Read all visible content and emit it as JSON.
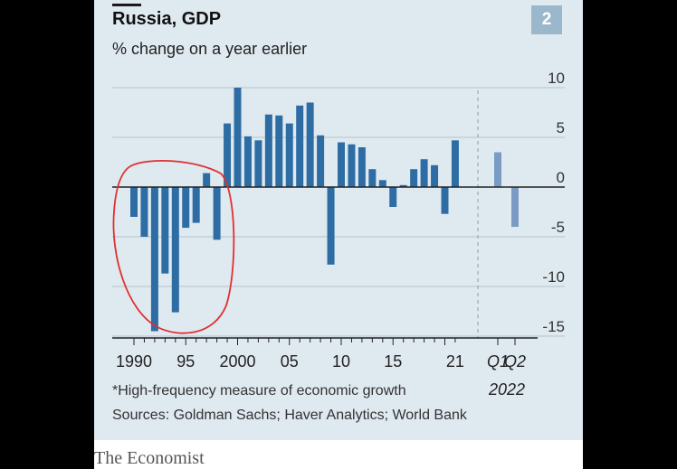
{
  "header": {
    "title": "Russia, GDP",
    "subtitle": "% change on a year earlier",
    "badge": "2"
  },
  "footer": {
    "footnote": "*High-frequency measure of economic growth",
    "sources": "Sources: Goldman Sachs; Haver Analytics; World Bank",
    "brand": "The Economist"
  },
  "colors": {
    "bar": "#2e6da4",
    "bar_estimate": "#7a9cc4",
    "annotation_circle": "#e03030",
    "background": "#dfe9f0"
  },
  "chart_data": {
    "type": "bar",
    "title": "Russia, GDP",
    "subtitle": "% change on a year earlier",
    "ylim": [
      -15,
      10
    ],
    "yticks": [
      10,
      5,
      0,
      -5,
      -10,
      -15
    ],
    "ytick_labels": [
      "10",
      "5",
      "0",
      "-5",
      "-10",
      "-15"
    ],
    "grid": true,
    "x": [
      1990,
      1991,
      1992,
      1993,
      1994,
      1995,
      1996,
      1997,
      1998,
      1999,
      2000,
      2001,
      2002,
      2003,
      2004,
      2005,
      2006,
      2007,
      2008,
      2009,
      2010,
      2011,
      2012,
      2013,
      2014,
      2015,
      2016,
      2017,
      2018,
      2019,
      2020,
      2021
    ],
    "values": [
      -3.0,
      -5.0,
      -14.5,
      -8.7,
      -12.6,
      -4.1,
      -3.6,
      1.4,
      -5.3,
      6.4,
      10.0,
      5.1,
      4.7,
      7.3,
      7.2,
      6.4,
      8.2,
      8.5,
      5.2,
      -7.8,
      4.5,
      4.3,
      4.0,
      1.8,
      0.7,
      -2.0,
      0.2,
      1.8,
      2.8,
      2.2,
      -2.7,
      4.7
    ],
    "xtick_labels": [
      {
        "at": 1990,
        "label": "1990"
      },
      {
        "at": 1995,
        "label": "95"
      },
      {
        "at": 2000,
        "label": "2000"
      },
      {
        "at": 2005,
        "label": "05"
      },
      {
        "at": 2010,
        "label": "10"
      },
      {
        "at": 2015,
        "label": "15"
      },
      {
        "at": 2021,
        "label": "21"
      }
    ],
    "quarterly": {
      "note": "*",
      "year_label": "2022",
      "quarters": [
        {
          "label": "Q1",
          "value": 3.5
        },
        {
          "label": "Q2",
          "value": -4.0
        }
      ]
    },
    "annotation": "red hand-drawn circle around 1991-1998 bars"
  }
}
